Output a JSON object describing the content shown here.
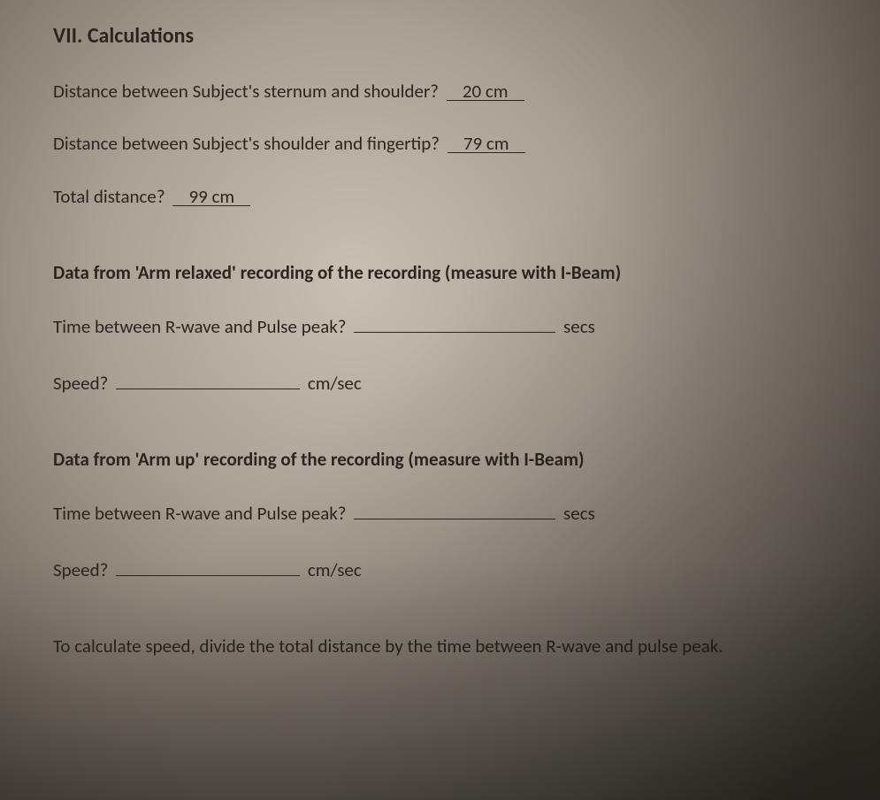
{
  "heading": "VII. Calculations",
  "q1": {
    "prompt_before": "Distance between Subject's sternum and shoulder?",
    "value": "20 cm",
    "prompt_after": ""
  },
  "q2": {
    "prompt_before": "Distance between Subject's shoulder and fingertip?",
    "value": "79 cm",
    "prompt_after": ""
  },
  "q3": {
    "prompt_before": "Total distance?",
    "value": "99 cm",
    "prompt_after": ""
  },
  "section_a": {
    "title": "Data from 'Arm relaxed' recording of the recording (measure with I-Beam)",
    "time": {
      "prompt_before": "Time between R-wave and Pulse peak?",
      "value": "",
      "unit": "secs"
    },
    "speed": {
      "prompt_before": "Speed?",
      "value": "",
      "unit": "cm/sec"
    }
  },
  "section_b": {
    "title": "Data from 'Arm up' recording of the recording (measure with I-Beam)",
    "time": {
      "prompt_before": "Time between R-wave and Pulse peak?",
      "value": "",
      "unit": "secs"
    },
    "speed": {
      "prompt_before": "Speed?",
      "value": "",
      "unit": "cm/sec"
    }
  },
  "footer": "To calculate speed, divide the total distance by the time between R-wave and pulse peak."
}
